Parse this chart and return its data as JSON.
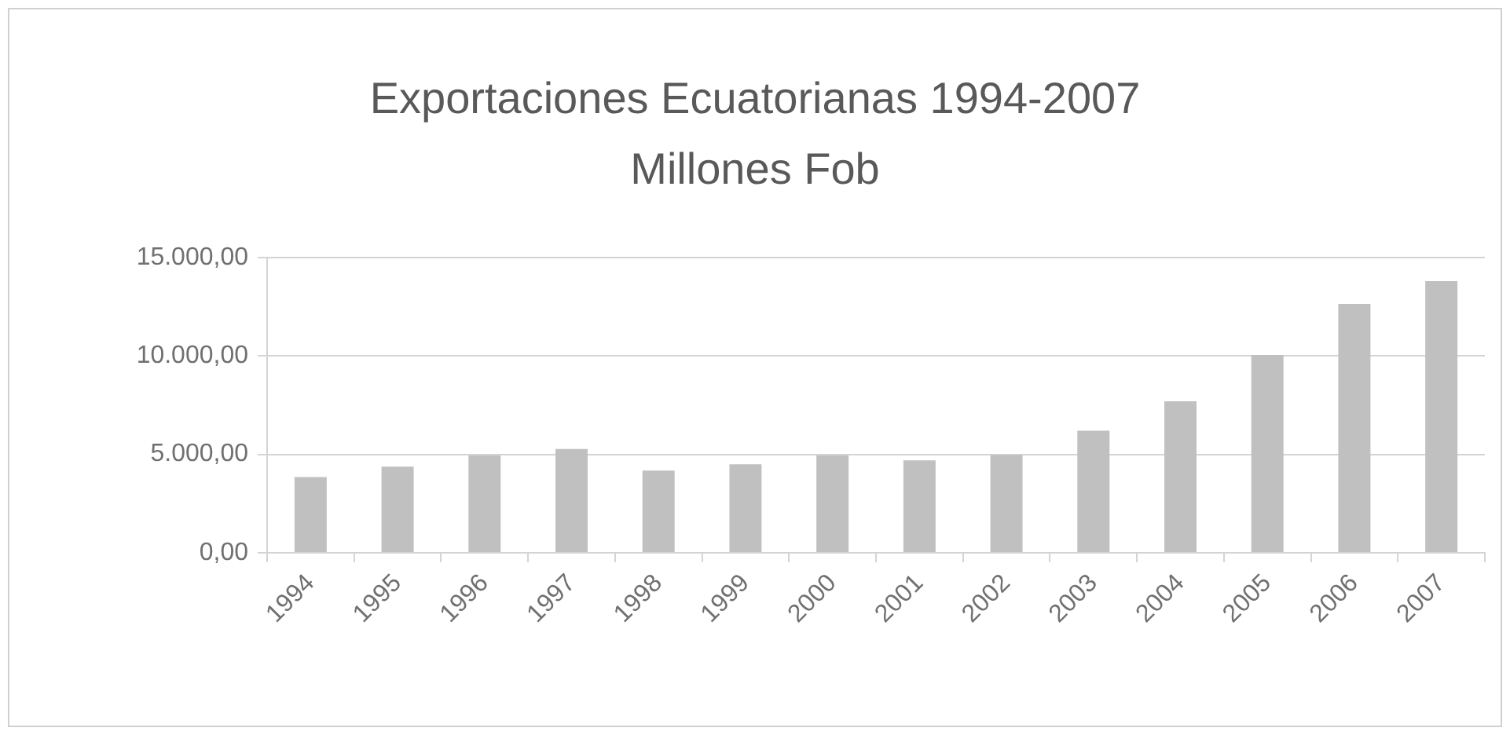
{
  "chart_data": {
    "type": "bar",
    "title": "Exportaciones Ecuatorianas 1994-2007 Millones Fob",
    "categories": [
      "1994",
      "1995",
      "1996",
      "1997",
      "1998",
      "1999",
      "2000",
      "2001",
      "2002",
      "2003",
      "2004",
      "2005",
      "2006",
      "2007"
    ],
    "values": [
      3850,
      4380,
      4950,
      5280,
      4180,
      4500,
      4950,
      4700,
      4980,
      6200,
      7700,
      10050,
      12650,
      13800
    ],
    "color": "#c0c0c0",
    "ylim": [
      0,
      15000
    ],
    "yticks": [
      {
        "value": 0,
        "label": "0,00"
      },
      {
        "value": 5000,
        "label": "5.000,00"
      },
      {
        "value": 10000,
        "label": "10.000,00"
      },
      {
        "value": 15000,
        "label": "15.000,00"
      }
    ],
    "grid": "y"
  }
}
